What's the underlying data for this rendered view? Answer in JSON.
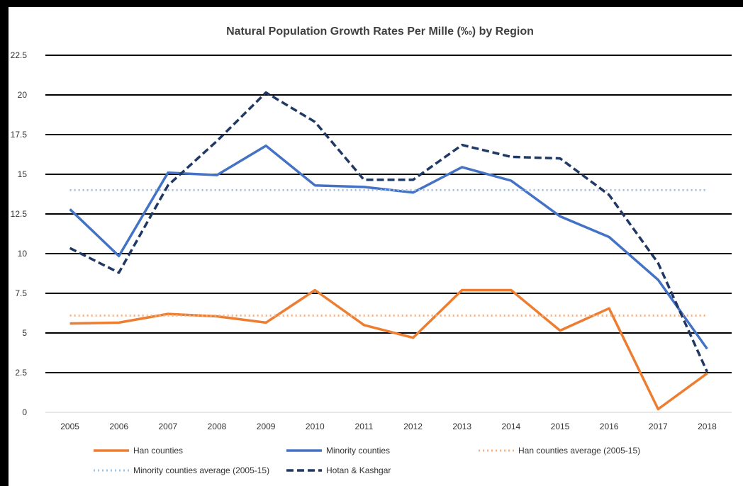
{
  "chart_data": {
    "type": "line",
    "title": "Natural Population Growth Rates Per Mille (‰) by Region",
    "xlabel": "",
    "ylabel": "",
    "ylim": [
      0,
      22.5
    ],
    "y_ticks": [
      "0",
      "2.5",
      "5",
      "7.5",
      "10",
      "12.5",
      "15",
      "17.5",
      "20",
      "22.5"
    ],
    "y_tick_values": [
      0,
      2.5,
      5,
      7.5,
      10,
      12.5,
      15,
      17.5,
      20,
      22.5
    ],
    "categories": [
      "2005",
      "2006",
      "2007",
      "2008",
      "2009",
      "2010",
      "2011",
      "2012",
      "2013",
      "2014",
      "2015",
      "2016",
      "2017",
      "2018"
    ],
    "grid": true,
    "legend_position": "bottom",
    "series": [
      {
        "name": "Han counties",
        "color": "#ED7D31",
        "style": "solid",
        "values": [
          5.6,
          5.65,
          6.2,
          6.05,
          5.65,
          7.7,
          5.5,
          4.7,
          7.7,
          7.7,
          5.15,
          6.55,
          0.2,
          2.45
        ]
      },
      {
        "name": "Minority counties",
        "color": "#4472C4",
        "style": "solid",
        "values": [
          12.8,
          9.85,
          15.1,
          14.95,
          16.8,
          14.3,
          14.2,
          13.85,
          15.45,
          14.6,
          12.35,
          11.05,
          8.35,
          4.0
        ]
      },
      {
        "name": "Han counties average (2005-15)",
        "color": "#F4B183",
        "style": "dotted",
        "values": [
          6.1,
          6.1,
          6.1,
          6.1,
          6.1,
          6.1,
          6.1,
          6.1,
          6.1,
          6.1,
          6.1,
          6.1,
          6.1,
          6.1
        ]
      },
      {
        "name": "Minority counties average (2005-15)",
        "color": "#9DC3E6",
        "style": "dotted",
        "values": [
          14.0,
          14.0,
          14.0,
          14.0,
          14.0,
          14.0,
          14.0,
          14.0,
          14.0,
          14.0,
          14.0,
          14.0,
          14.0,
          14.0
        ]
      },
      {
        "name": "Hotan & Kashgar",
        "color": "#203864",
        "style": "dashed",
        "values": [
          10.35,
          8.8,
          14.3,
          17.1,
          20.15,
          18.3,
          14.65,
          14.65,
          16.85,
          16.1,
          16.0,
          13.7,
          9.4,
          2.55
        ]
      }
    ]
  }
}
